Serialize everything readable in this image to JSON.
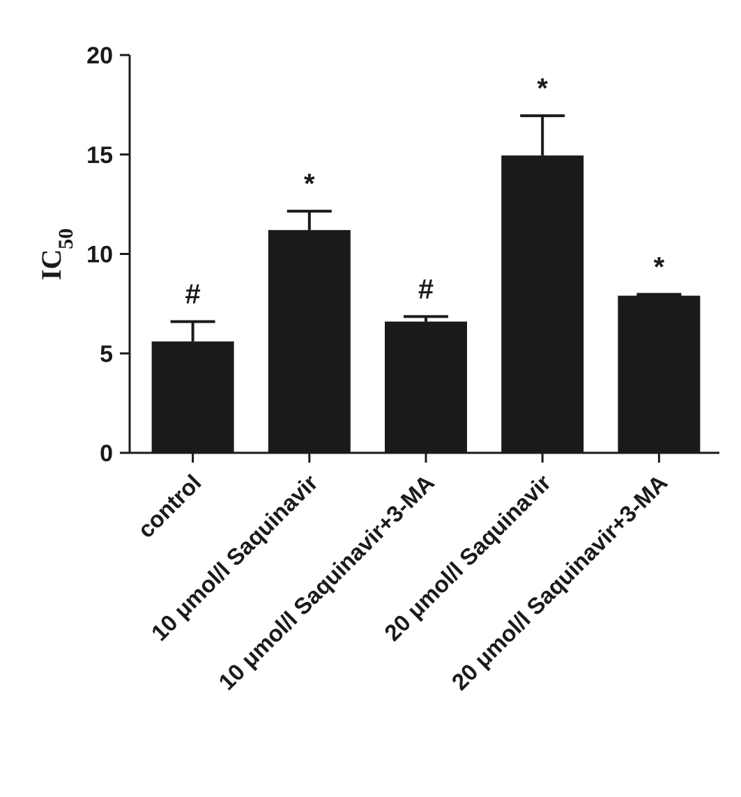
{
  "chart_data": {
    "type": "bar",
    "categories": [
      "control",
      "10 μmol/l Saquinavir",
      "10 μmol/l Saquinavir+3-MA",
      "20 μmol/l Saquinavir",
      "20 μmol/l Saquinavir+3-MA"
    ],
    "values": [
      5.6,
      11.2,
      6.6,
      14.95,
      7.9
    ],
    "error_upper": [
      6.6,
      12.15,
      6.85,
      16.95,
      7.97
    ],
    "significance": [
      "#",
      "*",
      "#",
      "*",
      "*"
    ],
    "ylabel": {
      "main": "IC",
      "sub": "50"
    },
    "xlabel": "",
    "title": "",
    "ylim": [
      0,
      20
    ],
    "yticks": [
      "0",
      "5",
      "10",
      "15",
      "20"
    ],
    "ytick_values": [
      0,
      5,
      10,
      15,
      20
    ],
    "grid": false,
    "bar_color": "#1a1a1a"
  }
}
